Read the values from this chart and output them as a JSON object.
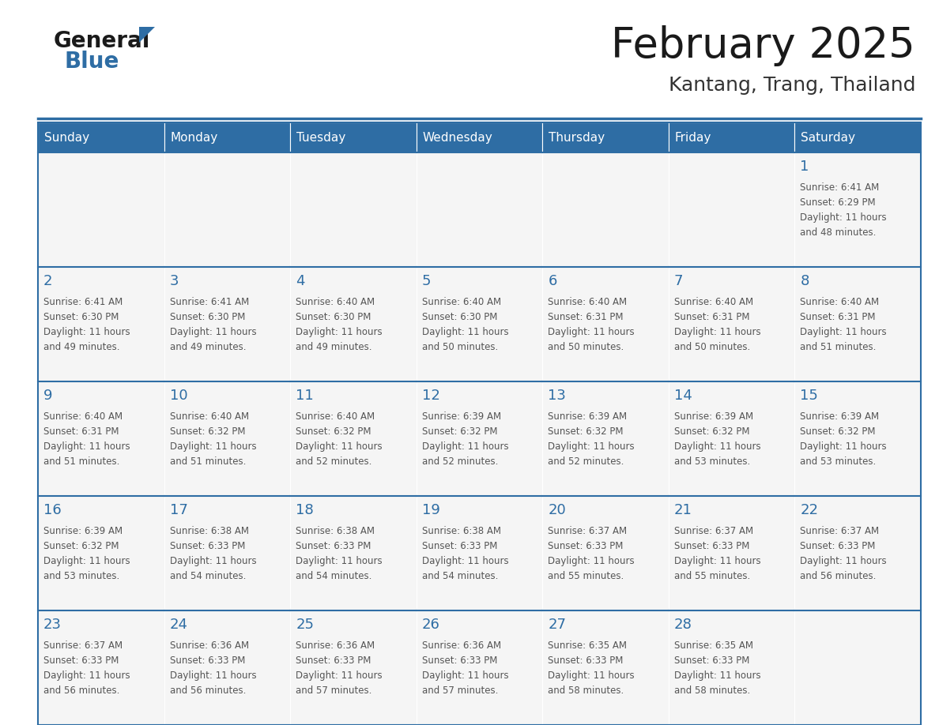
{
  "title": "February 2025",
  "subtitle": "Kantang, Trang, Thailand",
  "header_bg": "#2E6DA4",
  "header_text": "#FFFFFF",
  "cell_bg": "#F5F5F5",
  "day_number_color": "#2E6DA4",
  "detail_text_color": "#555555",
  "border_color": "#2E6DA4",
  "days_of_week": [
    "Sunday",
    "Monday",
    "Tuesday",
    "Wednesday",
    "Thursday",
    "Friday",
    "Saturday"
  ],
  "calendar_data": [
    [
      null,
      null,
      null,
      null,
      null,
      null,
      {
        "day": "1",
        "sunrise": "6:41 AM",
        "sunset": "6:29 PM",
        "daylight1": "Daylight: 11 hours",
        "daylight2": "and 48 minutes."
      }
    ],
    [
      {
        "day": "2",
        "sunrise": "6:41 AM",
        "sunset": "6:30 PM",
        "daylight1": "Daylight: 11 hours",
        "daylight2": "and 49 minutes."
      },
      {
        "day": "3",
        "sunrise": "6:41 AM",
        "sunset": "6:30 PM",
        "daylight1": "Daylight: 11 hours",
        "daylight2": "and 49 minutes."
      },
      {
        "day": "4",
        "sunrise": "6:40 AM",
        "sunset": "6:30 PM",
        "daylight1": "Daylight: 11 hours",
        "daylight2": "and 49 minutes."
      },
      {
        "day": "5",
        "sunrise": "6:40 AM",
        "sunset": "6:30 PM",
        "daylight1": "Daylight: 11 hours",
        "daylight2": "and 50 minutes."
      },
      {
        "day": "6",
        "sunrise": "6:40 AM",
        "sunset": "6:31 PM",
        "daylight1": "Daylight: 11 hours",
        "daylight2": "and 50 minutes."
      },
      {
        "day": "7",
        "sunrise": "6:40 AM",
        "sunset": "6:31 PM",
        "daylight1": "Daylight: 11 hours",
        "daylight2": "and 50 minutes."
      },
      {
        "day": "8",
        "sunrise": "6:40 AM",
        "sunset": "6:31 PM",
        "daylight1": "Daylight: 11 hours",
        "daylight2": "and 51 minutes."
      }
    ],
    [
      {
        "day": "9",
        "sunrise": "6:40 AM",
        "sunset": "6:31 PM",
        "daylight1": "Daylight: 11 hours",
        "daylight2": "and 51 minutes."
      },
      {
        "day": "10",
        "sunrise": "6:40 AM",
        "sunset": "6:32 PM",
        "daylight1": "Daylight: 11 hours",
        "daylight2": "and 51 minutes."
      },
      {
        "day": "11",
        "sunrise": "6:40 AM",
        "sunset": "6:32 PM",
        "daylight1": "Daylight: 11 hours",
        "daylight2": "and 52 minutes."
      },
      {
        "day": "12",
        "sunrise": "6:39 AM",
        "sunset": "6:32 PM",
        "daylight1": "Daylight: 11 hours",
        "daylight2": "and 52 minutes."
      },
      {
        "day": "13",
        "sunrise": "6:39 AM",
        "sunset": "6:32 PM",
        "daylight1": "Daylight: 11 hours",
        "daylight2": "and 52 minutes."
      },
      {
        "day": "14",
        "sunrise": "6:39 AM",
        "sunset": "6:32 PM",
        "daylight1": "Daylight: 11 hours",
        "daylight2": "and 53 minutes."
      },
      {
        "day": "15",
        "sunrise": "6:39 AM",
        "sunset": "6:32 PM",
        "daylight1": "Daylight: 11 hours",
        "daylight2": "and 53 minutes."
      }
    ],
    [
      {
        "day": "16",
        "sunrise": "6:39 AM",
        "sunset": "6:32 PM",
        "daylight1": "Daylight: 11 hours",
        "daylight2": "and 53 minutes."
      },
      {
        "day": "17",
        "sunrise": "6:38 AM",
        "sunset": "6:33 PM",
        "daylight1": "Daylight: 11 hours",
        "daylight2": "and 54 minutes."
      },
      {
        "day": "18",
        "sunrise": "6:38 AM",
        "sunset": "6:33 PM",
        "daylight1": "Daylight: 11 hours",
        "daylight2": "and 54 minutes."
      },
      {
        "day": "19",
        "sunrise": "6:38 AM",
        "sunset": "6:33 PM",
        "daylight1": "Daylight: 11 hours",
        "daylight2": "and 54 minutes."
      },
      {
        "day": "20",
        "sunrise": "6:37 AM",
        "sunset": "6:33 PM",
        "daylight1": "Daylight: 11 hours",
        "daylight2": "and 55 minutes."
      },
      {
        "day": "21",
        "sunrise": "6:37 AM",
        "sunset": "6:33 PM",
        "daylight1": "Daylight: 11 hours",
        "daylight2": "and 55 minutes."
      },
      {
        "day": "22",
        "sunrise": "6:37 AM",
        "sunset": "6:33 PM",
        "daylight1": "Daylight: 11 hours",
        "daylight2": "and 56 minutes."
      }
    ],
    [
      {
        "day": "23",
        "sunrise": "6:37 AM",
        "sunset": "6:33 PM",
        "daylight1": "Daylight: 11 hours",
        "daylight2": "and 56 minutes."
      },
      {
        "day": "24",
        "sunrise": "6:36 AM",
        "sunset": "6:33 PM",
        "daylight1": "Daylight: 11 hours",
        "daylight2": "and 56 minutes."
      },
      {
        "day": "25",
        "sunrise": "6:36 AM",
        "sunset": "6:33 PM",
        "daylight1": "Daylight: 11 hours",
        "daylight2": "and 57 minutes."
      },
      {
        "day": "26",
        "sunrise": "6:36 AM",
        "sunset": "6:33 PM",
        "daylight1": "Daylight: 11 hours",
        "daylight2": "and 57 minutes."
      },
      {
        "day": "27",
        "sunrise": "6:35 AM",
        "sunset": "6:33 PM",
        "daylight1": "Daylight: 11 hours",
        "daylight2": "and 58 minutes."
      },
      {
        "day": "28",
        "sunrise": "6:35 AM",
        "sunset": "6:33 PM",
        "daylight1": "Daylight: 11 hours",
        "daylight2": "and 58 minutes."
      },
      null
    ]
  ]
}
